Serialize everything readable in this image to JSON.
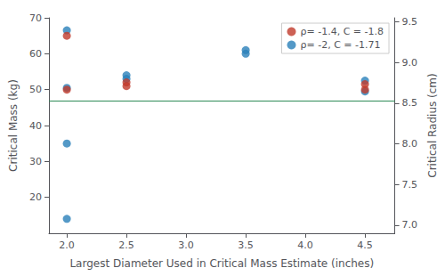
{
  "chart_data": {
    "type": "scatter",
    "xlabel": "Largest Diameter Used in Critical Mass Estimate (inches)",
    "ylabel": "Critical Mass (kg)",
    "y2label": "Critical Radius (cm)",
    "series": [
      {
        "name": "ρ= -1.4, C = -1.8",
        "color": "#c0392b",
        "x": [
          2.0,
          2.0,
          2.5,
          2.5,
          4.5,
          4.5
        ],
        "values": [
          65.0,
          50.0,
          52.0,
          51.0,
          51.5,
          50.0
        ]
      },
      {
        "name": "ρ= -2, C = -1.71",
        "color": "#2980b9",
        "x": [
          2.0,
          2.0,
          2.0,
          2.5,
          2.5,
          3.5,
          3.5,
          4.5,
          4.5,
          2.0
        ],
        "values": [
          66.5,
          50.5,
          35.0,
          54.0,
          53.0,
          61.0,
          60.0,
          52.5,
          49.5,
          14.0
        ]
      }
    ],
    "hline": {
      "y": 47.0,
      "color": "#2e8b57"
    },
    "xlim": [
      1.85,
      4.75
    ],
    "xticks": [
      {
        "value": 2.0,
        "label": "2.0"
      },
      {
        "value": 2.5,
        "label": "2.5"
      },
      {
        "value": 3.0,
        "label": "3.0"
      },
      {
        "value": 3.5,
        "label": "3.5"
      },
      {
        "value": 4.0,
        "label": "4.0"
      },
      {
        "value": 4.5,
        "label": "4.5"
      }
    ],
    "ylim": [
      10,
      70
    ],
    "yticks": [
      20,
      30,
      40,
      50,
      60,
      70
    ],
    "y2lim": [
      6.9,
      9.55
    ],
    "y2ticks": [
      {
        "value": 7.0,
        "label": "7.0"
      },
      {
        "value": 7.5,
        "label": "7.5"
      },
      {
        "value": 8.0,
        "label": "8.0"
      },
      {
        "value": 8.5,
        "label": "8.5"
      },
      {
        "value": 9.0,
        "label": "9.0"
      },
      {
        "value": 9.5,
        "label": "9.5"
      }
    ],
    "grid": false,
    "legend": "upper right"
  }
}
